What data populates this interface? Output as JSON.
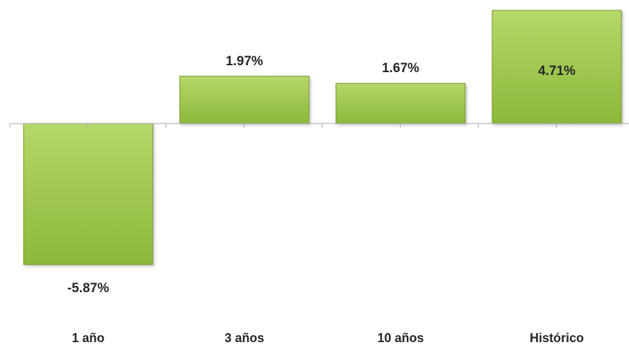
{
  "chart_data": {
    "type": "bar",
    "categories": [
      "1 año",
      "3 años",
      "10 años",
      "Histórico"
    ],
    "values": [
      -5.87,
      1.97,
      1.67,
      4.71
    ],
    "data_labels": [
      "-5.87%",
      "1.97%",
      "1.67%",
      "4.71%"
    ],
    "title": "",
    "xlabel": "",
    "ylabel": "",
    "ylim": [
      -7.3,
      5.3
    ],
    "grid": false,
    "legend": "none",
    "colors": {
      "bar_fill_light": "#b5d86a",
      "bar_fill_dark": "#8cb83a",
      "bar_edge": "#6f9628",
      "axis": "#a6a6a6",
      "label_text": "#262626"
    }
  }
}
